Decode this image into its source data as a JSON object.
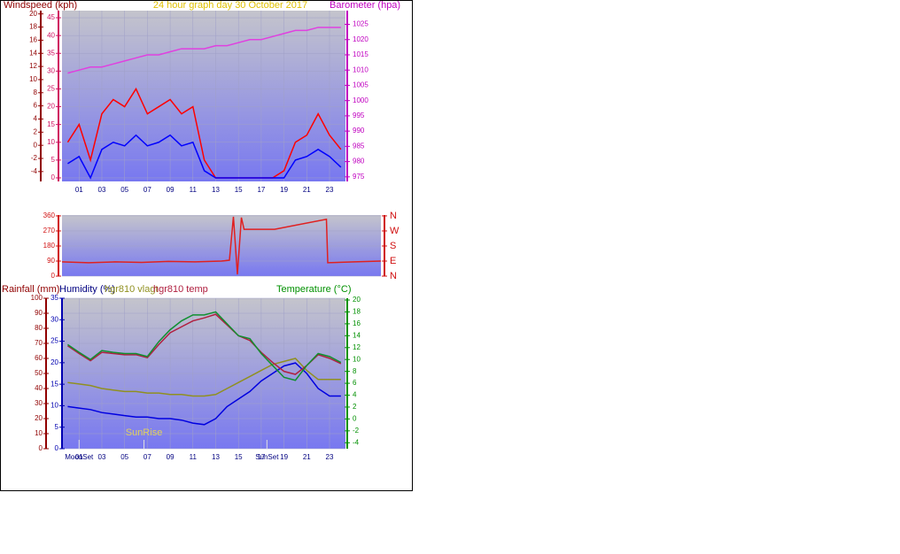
{
  "chart_data": [
    {
      "type": "line",
      "title": "24 hour graph day  30 October 2017",
      "y_label": "Windspeed (kph)",
      "y2_label": "Barometer (hpa)",
      "x": [
        0,
        1,
        2,
        3,
        4,
        5,
        6,
        7,
        8,
        9,
        10,
        11,
        12,
        13,
        14,
        15,
        16,
        17,
        18,
        19,
        20,
        21,
        22,
        23,
        24
      ],
      "xlim": [
        -0.5,
        24.4
      ],
      "xticks": [
        {
          "value": 1,
          "label": "01"
        },
        {
          "value": 3,
          "label": "03"
        },
        {
          "value": 5,
          "label": "05"
        },
        {
          "value": 7,
          "label": "07"
        },
        {
          "value": 9,
          "label": "09"
        },
        11,
        13,
        15,
        17,
        19,
        21,
        23
      ],
      "ylim": [
        -1,
        47
      ],
      "yticks": [
        0,
        5,
        10,
        15,
        20,
        25,
        30,
        35,
        40,
        45
      ],
      "y3lim": [
        -5.5,
        20.5
      ],
      "y3ticks": [
        -4,
        -2,
        0,
        2,
        4,
        6,
        8,
        10,
        12,
        14,
        16,
        18,
        20
      ],
      "y2lim": [
        973.5,
        1029.5
      ],
      "y2ticks": [
        975,
        980,
        985,
        990,
        995,
        1000,
        1005,
        1010,
        1015,
        1020,
        1025
      ],
      "series": [
        {
          "color": "#ff0000",
          "values": [
            10,
            15,
            5,
            18,
            22,
            20,
            25,
            18,
            20,
            22,
            18,
            20,
            5,
            0,
            0,
            0,
            0,
            0,
            0,
            2,
            10,
            12,
            18,
            12,
            8
          ]
        },
        {
          "color": "#0000ff",
          "values": [
            4,
            6,
            0,
            8,
            10,
            9,
            12,
            9,
            10,
            12,
            9,
            10,
            2,
            0,
            0,
            0,
            0,
            0,
            0,
            0,
            5,
            6,
            8,
            6,
            3
          ]
        },
        {
          "color": "#e040e0",
          "axis": "y2",
          "values": [
            1009,
            1010,
            1011,
            1011,
            1012,
            1013,
            1014,
            1015,
            1015,
            1016,
            1017,
            1017,
            1017,
            1018,
            1018,
            1019,
            1020,
            1020,
            1021,
            1022,
            1023,
            1023,
            1024,
            1024,
            1024
          ]
        }
      ]
    },
    {
      "type": "line",
      "x": [
        0,
        2,
        4,
        6,
        8,
        10,
        12,
        12.6,
        12.9,
        13.2,
        13.5,
        13.7,
        16,
        19.9,
        20,
        22,
        24
      ],
      "xlim": [
        0,
        24
      ],
      "ylim": [
        0,
        365
      ],
      "yticks": [
        0,
        90,
        180,
        270,
        360
      ],
      "y2lim": [
        0,
        365
      ],
      "y2ticks": [
        {
          "value": 0,
          "label": "N"
        },
        {
          "value": 90,
          "label": "E"
        },
        {
          "value": 180,
          "label": "S"
        },
        {
          "value": 270,
          "label": "W"
        },
        {
          "value": 360,
          "label": "N"
        }
      ],
      "series": [
        {
          "color": "#e02020",
          "values": [
            85,
            80,
            85,
            82,
            88,
            85,
            90,
            95,
            355,
            10,
            350,
            280,
            280,
            340,
            80,
            85,
            90
          ]
        }
      ]
    },
    {
      "type": "line",
      "y_label": "Rainfall (mm)",
      "y3_label": "Humidity (%)",
      "y2_label": "Temperature (°C)",
      "x": [
        0,
        1,
        2,
        3,
        4,
        5,
        6,
        7,
        8,
        9,
        10,
        11,
        12,
        13,
        14,
        15,
        16,
        17,
        18,
        19,
        20,
        21,
        22,
        23,
        24
      ],
      "xlim": [
        -0.5,
        24.4
      ],
      "xticks": [
        {
          "value": 1,
          "label": "01"
        },
        {
          "value": 3,
          "label": "03"
        },
        {
          "value": 5,
          "label": "05"
        },
        {
          "value": 7,
          "label": "07"
        },
        {
          "value": 9,
          "label": "09"
        },
        11,
        13,
        15,
        17,
        19,
        21,
        23
      ],
      "ylim": [
        0,
        100
      ],
      "yticks": [
        0,
        10,
        20,
        30,
        40,
        50,
        60,
        70,
        80,
        90,
        100
      ],
      "y3lim": [
        0,
        35
      ],
      "y3ticks": [
        0,
        5,
        10,
        15,
        20,
        25,
        30,
        35
      ],
      "y2lim": [
        -5,
        20.3
      ],
      "y2ticks": [
        -4,
        -2,
        0,
        2,
        4,
        6,
        8,
        10,
        12,
        14,
        16,
        18,
        20
      ],
      "annotations": [
        {
          "text": "SunRise",
          "x": 6.7
        },
        {
          "text": "MoonSet",
          "x": 1
        },
        {
          "text": "SunSet",
          "x": 17.5
        }
      ],
      "series": [
        {
          "color": "#0000e0",
          "values": [
            28,
            27,
            26,
            24,
            23,
            22,
            21,
            21,
            20,
            20,
            19,
            17,
            16,
            20,
            28,
            33,
            38,
            45,
            50,
            55,
            57,
            50,
            40,
            35,
            35
          ]
        },
        {
          "name": "hgr810 vlagt",
          "color": "#909020",
          "values": [
            44,
            43,
            42,
            40,
            39,
            38,
            38,
            37,
            37,
            36,
            36,
            35,
            35,
            36,
            40,
            44,
            48,
            52,
            56,
            58,
            60,
            52,
            46,
            46,
            46
          ]
        },
        {
          "name": "hgr810 temp",
          "color": "#b02040",
          "axis": "y2",
          "values": [
            12.3,
            11,
            9.8,
            11.2,
            11,
            10.8,
            10.8,
            10.3,
            12.5,
            14.5,
            15.5,
            16.5,
            17,
            17.6,
            15.8,
            14,
            13.2,
            11.2,
            9.5,
            8,
            7.5,
            9,
            10.8,
            10.2,
            9.3
          ]
        },
        {
          "name": "Temperature",
          "color": "#109030",
          "axis": "y2",
          "values": [
            12.5,
            11.2,
            10,
            11.5,
            11.2,
            11,
            11,
            10.5,
            13,
            15,
            16.5,
            17.5,
            17.5,
            18,
            16,
            14,
            13.5,
            11,
            9,
            7,
            6.5,
            9,
            11,
            10.5,
            9.5
          ]
        }
      ]
    }
  ]
}
